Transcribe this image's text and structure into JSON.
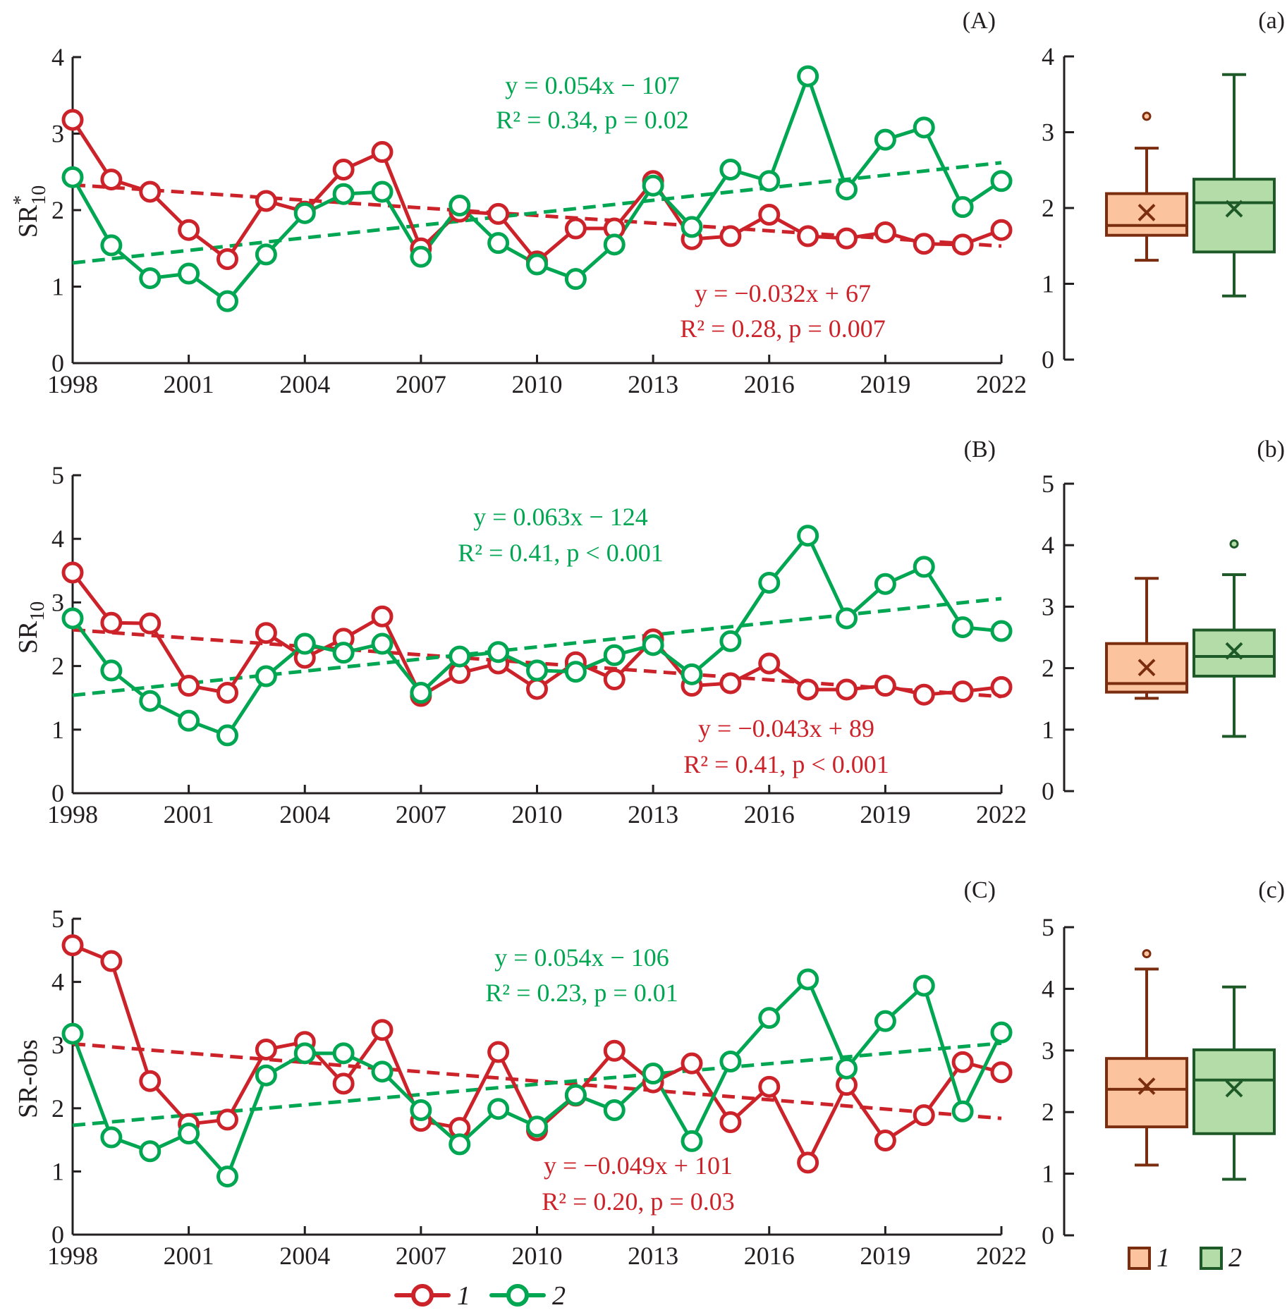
{
  "colors": {
    "series1_line": "#cc2229",
    "series2_line": "#00a651",
    "box1_fill": "#fbc39e",
    "box1_stroke": "#7b2d10",
    "box2_fill": "#b3dca8",
    "box2_stroke": "#1e5a28",
    "axis": "#231f20"
  },
  "legend": {
    "line_items": [
      {
        "label": "1"
      },
      {
        "label": "2"
      }
    ],
    "box_items": [
      {
        "label": "1"
      },
      {
        "label": "2"
      }
    ]
  },
  "chart_data": [
    {
      "id": "A",
      "type": "line",
      "panel_label": "(A)",
      "ylabel": "SR*10",
      "ylabel_main": "SR",
      "ylabel_sup": "*",
      "ylabel_sub": "10",
      "ylim": [
        0,
        4
      ],
      "yticks": [
        "0",
        "1",
        "2",
        "3",
        "4"
      ],
      "xlim": [
        1998,
        2022
      ],
      "xticks": [
        "1998",
        "2001",
        "2004",
        "2007",
        "2010",
        "2013",
        "2016",
        "2019",
        "2022"
      ],
      "x": [
        1998,
        1999,
        2000,
        2001,
        2002,
        2003,
        2004,
        2005,
        2006,
        2007,
        2008,
        2009,
        2010,
        2011,
        2012,
        2013,
        2014,
        2015,
        2016,
        2017,
        2018,
        2019,
        2020,
        2021,
        2022
      ],
      "series": [
        {
          "name": "1",
          "values": [
            3.18,
            2.4,
            2.24,
            1.74,
            1.36,
            2.12,
            1.98,
            2.53,
            2.76,
            1.5,
            1.98,
            1.95,
            1.33,
            1.76,
            1.76,
            2.38,
            1.62,
            1.66,
            1.94,
            1.66,
            1.63,
            1.71,
            1.56,
            1.55,
            1.74
          ],
          "trend": {
            "slope": -0.032,
            "start": 2.33,
            "end": 1.53
          },
          "equation": "y = −0.032x + 67",
          "stats": "R² = 0.28, p = 0.007"
        },
        {
          "name": "2",
          "values": [
            2.43,
            1.54,
            1.11,
            1.17,
            0.81,
            1.42,
            1.96,
            2.21,
            2.24,
            1.39,
            2.06,
            1.57,
            1.29,
            1.1,
            1.55,
            2.32,
            1.78,
            2.53,
            2.38,
            3.75,
            2.27,
            2.92,
            3.08,
            2.04,
            2.38
          ],
          "trend": {
            "slope": 0.054,
            "start": 1.31,
            "end": 2.62
          },
          "equation": "y = 0.054x − 107",
          "stats": "R² = 0.34, p = 0.02"
        }
      ]
    },
    {
      "id": "B",
      "type": "line",
      "panel_label": "(B)",
      "ylabel": "SR10",
      "ylabel_main": "SR",
      "ylabel_sup": "",
      "ylabel_sub": "10",
      "ylim": [
        0,
        5
      ],
      "yticks": [
        "0",
        "1",
        "2",
        "3",
        "4",
        "5"
      ],
      "xlim": [
        1998,
        2022
      ],
      "xticks": [
        "1998",
        "2001",
        "2004",
        "2007",
        "2010",
        "2013",
        "2016",
        "2019",
        "2022"
      ],
      "x": [
        1998,
        1999,
        2000,
        2001,
        2002,
        2003,
        2004,
        2005,
        2006,
        2007,
        2008,
        2009,
        2010,
        2011,
        2012,
        2013,
        2014,
        2015,
        2016,
        2017,
        2018,
        2019,
        2020,
        2021,
        2022
      ],
      "series": [
        {
          "name": "1",
          "values": [
            3.47,
            2.68,
            2.67,
            1.69,
            1.58,
            2.52,
            2.13,
            2.43,
            2.78,
            1.53,
            1.89,
            2.04,
            1.64,
            2.06,
            1.79,
            2.42,
            1.69,
            1.73,
            2.04,
            1.63,
            1.63,
            1.69,
            1.55,
            1.6,
            1.67
          ],
          "trend": {
            "slope": -0.043,
            "start": 2.57,
            "end": 1.52
          },
          "equation": "y = −0.043x + 89",
          "stats": "R² = 0.41, p < 0.001"
        },
        {
          "name": "2",
          "values": [
            2.75,
            1.93,
            1.45,
            1.14,
            0.91,
            1.84,
            2.35,
            2.21,
            2.35,
            1.58,
            2.15,
            2.22,
            1.93,
            1.91,
            2.17,
            2.33,
            1.87,
            2.39,
            3.31,
            4.05,
            2.75,
            3.29,
            3.56,
            2.61,
            2.55
          ],
          "trend": {
            "slope": 0.063,
            "start": 1.54,
            "end": 3.06
          },
          "equation": "y = 0.063x − 124",
          "stats": "R² = 0.41, p < 0.001"
        }
      ]
    },
    {
      "id": "C",
      "type": "line",
      "panel_label": "(C)",
      "ylabel": "SR-obs",
      "ylabel_main": "SR-obs",
      "ylabel_sup": "",
      "ylabel_sub": "",
      "ylim": [
        0,
        5
      ],
      "yticks": [
        "0",
        "1",
        "2",
        "3",
        "4",
        "5"
      ],
      "xlim": [
        1998,
        2022
      ],
      "xticks": [
        "1998",
        "2001",
        "2004",
        "2007",
        "2010",
        "2013",
        "2016",
        "2019",
        "2022"
      ],
      "x": [
        1998,
        1999,
        2000,
        2001,
        2002,
        2003,
        2004,
        2005,
        2006,
        2007,
        2008,
        2009,
        2010,
        2011,
        2012,
        2013,
        2014,
        2015,
        2016,
        2017,
        2018,
        2019,
        2020,
        2021,
        2022
      ],
      "series": [
        {
          "name": "1",
          "values": [
            4.58,
            4.33,
            2.43,
            1.75,
            1.82,
            2.93,
            3.05,
            2.39,
            3.24,
            1.8,
            1.69,
            2.89,
            1.65,
            2.2,
            2.91,
            2.41,
            2.71,
            1.78,
            2.34,
            1.14,
            2.37,
            1.49,
            1.89,
            2.73,
            2.57
          ],
          "trend": {
            "slope": -0.049,
            "start": 3.02,
            "end": 1.84
          },
          "equation": "y = −0.049x + 101",
          "stats": "R² = 0.20, p = 0.03"
        },
        {
          "name": "2",
          "values": [
            3.18,
            1.54,
            1.32,
            1.6,
            0.92,
            2.52,
            2.87,
            2.87,
            2.58,
            1.97,
            1.43,
            1.99,
            1.71,
            2.21,
            1.97,
            2.55,
            1.48,
            2.74,
            3.43,
            4.04,
            2.63,
            3.38,
            3.94,
            1.95,
            3.2
          ],
          "trend": {
            "slope": 0.054,
            "start": 1.73,
            "end": 3.03
          },
          "equation": "y = 0.054x − 106",
          "stats": "R² = 0.23, p = 0.01"
        }
      ]
    },
    {
      "id": "a",
      "type": "box",
      "panel_label": "(a)",
      "ylim": [
        0,
        4
      ],
      "yticks": [
        "0",
        "1",
        "2",
        "3",
        "4"
      ],
      "boxes": [
        {
          "name": "1",
          "whisker_low": 1.31,
          "q1": 1.64,
          "median": 1.77,
          "q3": 2.19,
          "whisker_high": 2.79,
          "mean": 1.94,
          "outliers": [
            3.21
          ]
        },
        {
          "name": "2",
          "whisker_low": 0.84,
          "q1": 1.42,
          "median": 2.07,
          "q3": 2.38,
          "whisker_high": 3.76,
          "mean": 1.99,
          "outliers": []
        }
      ]
    },
    {
      "id": "b",
      "type": "box",
      "panel_label": "(b)",
      "ylim": [
        0,
        5
      ],
      "yticks": [
        "0",
        "1",
        "2",
        "3",
        "4",
        "5"
      ],
      "boxes": [
        {
          "name": "1",
          "whisker_low": 1.51,
          "q1": 1.61,
          "median": 1.75,
          "q3": 2.4,
          "whisker_high": 3.46,
          "mean": 2.01,
          "outliers": []
        },
        {
          "name": "2",
          "whisker_low": 0.89,
          "q1": 1.87,
          "median": 2.19,
          "q3": 2.62,
          "whisker_high": 3.52,
          "mean": 2.28,
          "outliers": [
            4.02
          ]
        }
      ]
    },
    {
      "id": "c",
      "type": "box",
      "panel_label": "(c)",
      "ylim": [
        0,
        5
      ],
      "yticks": [
        "0",
        "1",
        "2",
        "3",
        "4",
        "5"
      ],
      "boxes": [
        {
          "name": "1",
          "whisker_low": 1.14,
          "q1": 1.76,
          "median": 2.37,
          "q3": 2.87,
          "whisker_high": 4.32,
          "mean": 2.42,
          "outliers": [
            4.57
          ]
        },
        {
          "name": "2",
          "whisker_low": 0.91,
          "q1": 1.65,
          "median": 2.52,
          "q3": 3.01,
          "whisker_high": 4.03,
          "mean": 2.38,
          "outliers": []
        }
      ]
    }
  ]
}
